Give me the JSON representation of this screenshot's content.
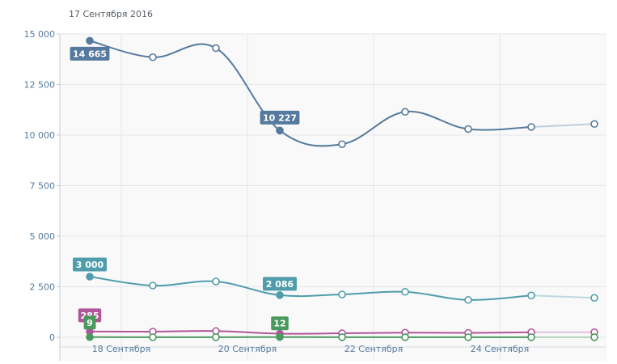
{
  "header": {
    "date": "17 Сентября 2016"
  },
  "chart_data": {
    "type": "line",
    "title": "",
    "xlabel": "",
    "ylabel": "",
    "ylim": [
      0,
      15000
    ],
    "grid": true,
    "legend": "none",
    "y_ticks": [
      0,
      2500,
      5000,
      7500,
      10000,
      12500,
      15000
    ],
    "y_tick_labels": [
      "0",
      "2 500",
      "5 000",
      "7 500",
      "10 000",
      "12 500",
      "15 000"
    ],
    "x_tick_labels": [
      "18 Сентября",
      "20 Сентября",
      "22 Сентября",
      "24 Сентября"
    ],
    "x": [
      "17 Сентября",
      "18 Сентября",
      "19 Сентября",
      "20 Сентября",
      "21 Сентября",
      "22 Сентября",
      "23 Сентября",
      "24 Сентября",
      "25 Сентября"
    ],
    "series": [
      {
        "color": "#557a9d",
        "values": [
          14665,
          13850,
          14300,
          10227,
          9550,
          11150,
          10300,
          10400,
          10550
        ],
        "labels": [
          {
            "index": 0,
            "text": "14 665"
          },
          {
            "index": 3,
            "text": "10 227"
          }
        ]
      },
      {
        "color": "#4f9dab",
        "values": [
          3000,
          2560,
          2760,
          2086,
          2120,
          2250,
          1850,
          2070,
          1950
        ],
        "labels": [
          {
            "index": 0,
            "text": "3 000"
          },
          {
            "index": 3,
            "text": "2 086"
          }
        ]
      },
      {
        "color": "#b0559a",
        "values": [
          285,
          280,
          310,
          180,
          200,
          230,
          220,
          250,
          250
        ],
        "labels": [
          {
            "index": 0,
            "text": "285"
          }
        ]
      },
      {
        "color": "#4a9a5e",
        "values": [
          9,
          5,
          7,
          12,
          7,
          6,
          5,
          4,
          4
        ],
        "labels": [
          {
            "index": 0,
            "text": "9"
          },
          {
            "index": 3,
            "text": "12"
          }
        ]
      }
    ]
  }
}
